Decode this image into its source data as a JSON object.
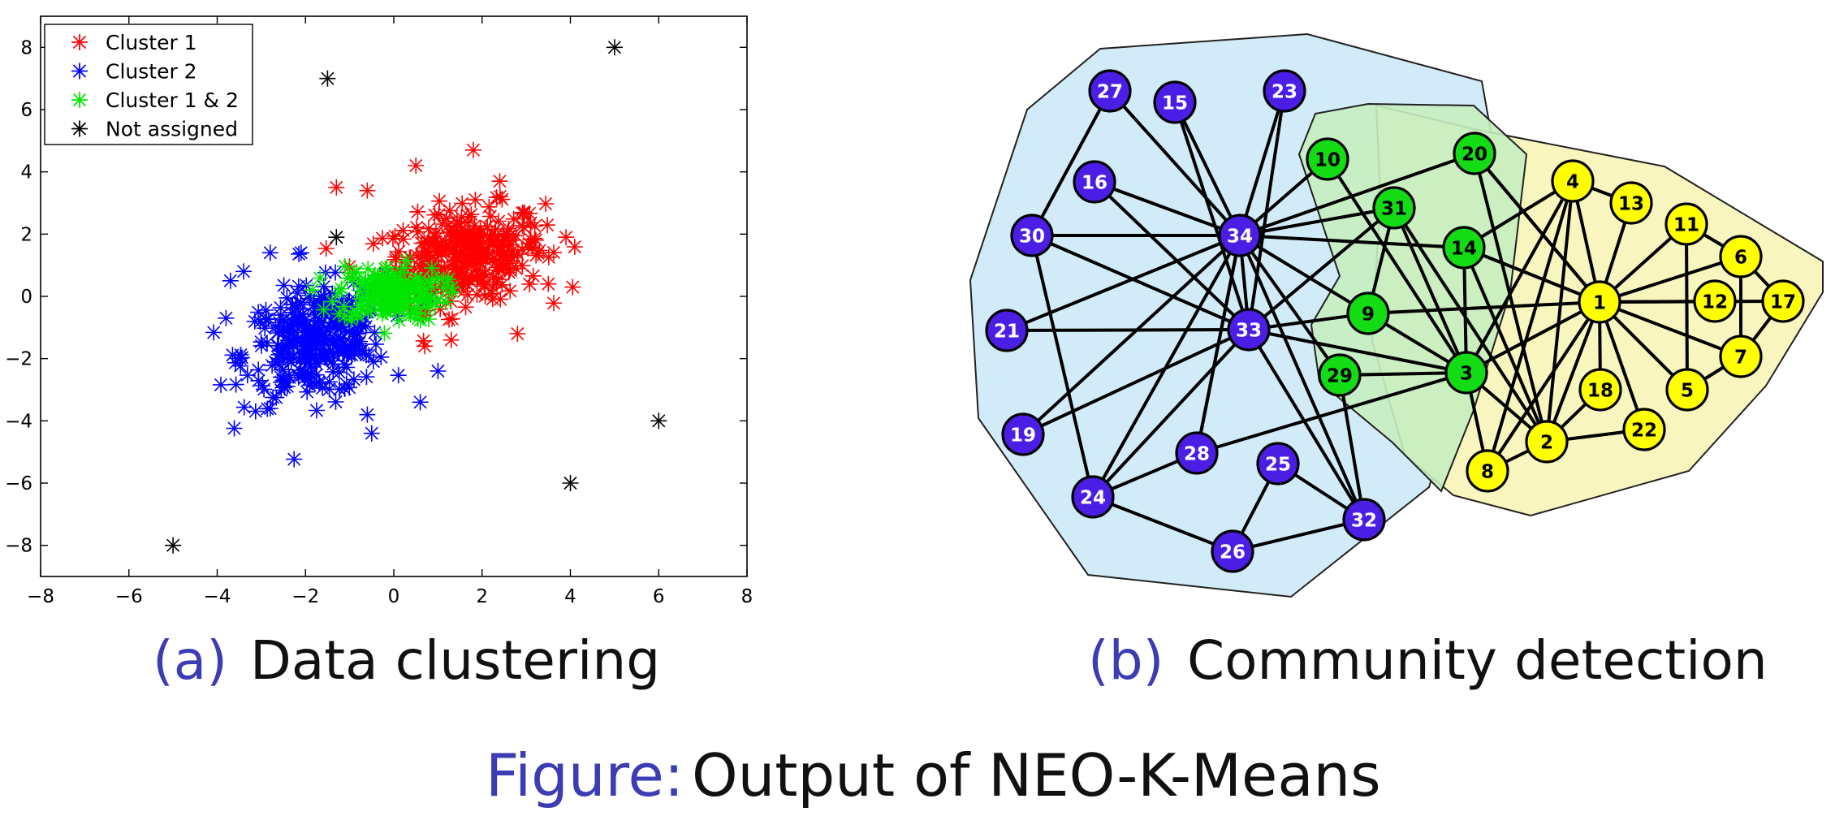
{
  "figure": {
    "prefix": "Figure:",
    "text": "Output of NEO-K-Means",
    "accent_color": "#3c3cb4"
  },
  "panels": {
    "a": {
      "label": "(a)",
      "caption": "Data clustering"
    },
    "b": {
      "label": "(b)",
      "caption": "Community detection"
    }
  },
  "chart_data": [
    {
      "type": "scatter",
      "title": "",
      "xlabel": "",
      "ylabel": "",
      "xlim": [
        -8,
        8
      ],
      "ylim": [
        -9,
        9
      ],
      "xticks": [
        -8,
        -6,
        -4,
        -2,
        0,
        2,
        4,
        6,
        8
      ],
      "yticks": [
        -8,
        -6,
        -4,
        -2,
        0,
        2,
        4,
        6,
        8
      ],
      "marker": "asterisk",
      "grid": false,
      "legend_position": "top-left",
      "series": [
        {
          "name": "Cluster 1",
          "color": "#ff0000",
          "center": [
            1.6,
            1.3
          ],
          "spread": [
            0.9,
            0.75
          ],
          "count": 330,
          "extra_points": [
            [
              1.8,
              4.7
            ],
            [
              0.5,
              4.2
            ],
            [
              -1.3,
              3.5
            ],
            [
              2.4,
              3.7
            ],
            [
              3.9,
              1.9
            ],
            [
              3.5,
              0.4
            ],
            [
              2.8,
              -1.2
            ],
            [
              0.7,
              -1.6
            ],
            [
              1.3,
              -1.4
            ],
            [
              -0.6,
              3.4
            ]
          ]
        },
        {
          "name": "Cluster 2",
          "color": "#0000ff",
          "center": [
            -1.8,
            -1.5
          ],
          "spread": [
            0.8,
            0.9
          ],
          "count": 320,
          "extra_points": [
            [
              -2.8,
              1.4
            ],
            [
              -3.8,
              -0.7
            ],
            [
              -3.7,
              0.5
            ],
            [
              -2.8,
              -3.6
            ],
            [
              -0.6,
              -3.8
            ],
            [
              -0.5,
              -4.4
            ],
            [
              0.6,
              -3.4
            ],
            [
              1.0,
              -2.4
            ],
            [
              -3.4,
              0.8
            ],
            [
              -2.1,
              1.4
            ]
          ]
        },
        {
          "name": "Cluster 1 & 2",
          "color": "#00e600",
          "center": [
            -0.1,
            0.1
          ],
          "spread": [
            0.6,
            0.45
          ],
          "count": 170,
          "extra_points": []
        },
        {
          "name": "Not assigned",
          "color": "#000000",
          "count": 6,
          "extra_points": [
            [
              -1.5,
              7.0
            ],
            [
              5.0,
              8.0
            ],
            [
              6.0,
              -4.0
            ],
            [
              4.0,
              -6.0
            ],
            [
              -5.0,
              -8.0
            ],
            [
              -1.3,
              1.9
            ]
          ]
        }
      ]
    },
    {
      "type": "network",
      "groups": [
        {
          "name": "",
          "color": "#4b1ee6",
          "region": "#d0eaf8"
        },
        {
          "name": "",
          "color": "#14dc14",
          "region": "#cfefc4"
        },
        {
          "name": "",
          "color": "#ffff00",
          "region": "#f9f4b8"
        }
      ],
      "nodes": [
        {
          "id": "27",
          "group": 0
        },
        {
          "id": "15",
          "group": 0
        },
        {
          "id": "23",
          "group": 0
        },
        {
          "id": "16",
          "group": 0
        },
        {
          "id": "30",
          "group": 0
        },
        {
          "id": "34",
          "group": 0
        },
        {
          "id": "21",
          "group": 0
        },
        {
          "id": "33",
          "group": 0
        },
        {
          "id": "19",
          "group": 0
        },
        {
          "id": "28",
          "group": 0
        },
        {
          "id": "25",
          "group": 0
        },
        {
          "id": "24",
          "group": 0
        },
        {
          "id": "26",
          "group": 0
        },
        {
          "id": "32",
          "group": 0
        },
        {
          "id": "10",
          "group": 1
        },
        {
          "id": "20",
          "group": 1
        },
        {
          "id": "31",
          "group": 1
        },
        {
          "id": "14",
          "group": 1
        },
        {
          "id": "9",
          "group": 1
        },
        {
          "id": "29",
          "group": 1
        },
        {
          "id": "3",
          "group": 1
        },
        {
          "id": "4",
          "group": 2
        },
        {
          "id": "13",
          "group": 2
        },
        {
          "id": "11",
          "group": 2
        },
        {
          "id": "6",
          "group": 2
        },
        {
          "id": "1",
          "group": 2
        },
        {
          "id": "12",
          "group": 2
        },
        {
          "id": "17",
          "group": 2
        },
        {
          "id": "18",
          "group": 2
        },
        {
          "id": "7",
          "group": 2
        },
        {
          "id": "5",
          "group": 2
        },
        {
          "id": "22",
          "group": 2
        },
        {
          "id": "2",
          "group": 2
        },
        {
          "id": "8",
          "group": 2
        }
      ],
      "edges": [
        [
          "34",
          "27"
        ],
        [
          "34",
          "15"
        ],
        [
          "34",
          "23"
        ],
        [
          "34",
          "16"
        ],
        [
          "34",
          "30"
        ],
        [
          "34",
          "10"
        ],
        [
          "34",
          "31"
        ],
        [
          "34",
          "20"
        ],
        [
          "34",
          "14"
        ],
        [
          "34",
          "9"
        ],
        [
          "34",
          "29"
        ],
        [
          "34",
          "33"
        ],
        [
          "34",
          "21"
        ],
        [
          "34",
          "19"
        ],
        [
          "34",
          "24"
        ],
        [
          "34",
          "28"
        ],
        [
          "34",
          "32"
        ],
        [
          "33",
          "23"
        ],
        [
          "33",
          "16"
        ],
        [
          "33",
          "30"
        ],
        [
          "33",
          "21"
        ],
        [
          "33",
          "15"
        ],
        [
          "33",
          "9"
        ],
        [
          "33",
          "3"
        ],
        [
          "33",
          "24"
        ],
        [
          "33",
          "19"
        ],
        [
          "33",
          "32"
        ],
        [
          "33",
          "31"
        ],
        [
          "27",
          "30"
        ],
        [
          "30",
          "24"
        ],
        [
          "24",
          "28"
        ],
        [
          "24",
          "26"
        ],
        [
          "28",
          "3"
        ],
        [
          "28",
          "34"
        ],
        [
          "25",
          "26"
        ],
        [
          "25",
          "32"
        ],
        [
          "26",
          "32"
        ],
        [
          "32",
          "29"
        ],
        [
          "31",
          "9"
        ],
        [
          "31",
          "3"
        ],
        [
          "10",
          "3"
        ],
        [
          "9",
          "3"
        ],
        [
          "9",
          "1"
        ],
        [
          "29",
          "3"
        ],
        [
          "14",
          "3"
        ],
        [
          "14",
          "2"
        ],
        [
          "20",
          "2"
        ],
        [
          "20",
          "1"
        ],
        [
          "3",
          "1"
        ],
        [
          "3",
          "4"
        ],
        [
          "3",
          "2"
        ],
        [
          "3",
          "8"
        ],
        [
          "31",
          "2"
        ],
        [
          "1",
          "4"
        ],
        [
          "1",
          "13"
        ],
        [
          "1",
          "11"
        ],
        [
          "1",
          "6"
        ],
        [
          "1",
          "12"
        ],
        [
          "1",
          "17"
        ],
        [
          "1",
          "7"
        ],
        [
          "1",
          "5"
        ],
        [
          "1",
          "18"
        ],
        [
          "1",
          "22"
        ],
        [
          "1",
          "2"
        ],
        [
          "1",
          "8"
        ],
        [
          "1",
          "14"
        ],
        [
          "1",
          "20"
        ],
        [
          "4",
          "13"
        ],
        [
          "4",
          "8"
        ],
        [
          "4",
          "2"
        ],
        [
          "4",
          "14"
        ],
        [
          "2",
          "8"
        ],
        [
          "2",
          "22"
        ],
        [
          "11",
          "6"
        ],
        [
          "11",
          "5"
        ],
        [
          "6",
          "17"
        ],
        [
          "17",
          "7"
        ],
        [
          "7",
          "5"
        ],
        [
          "6",
          "7"
        ],
        [
          "2",
          "18"
        ]
      ]
    }
  ]
}
